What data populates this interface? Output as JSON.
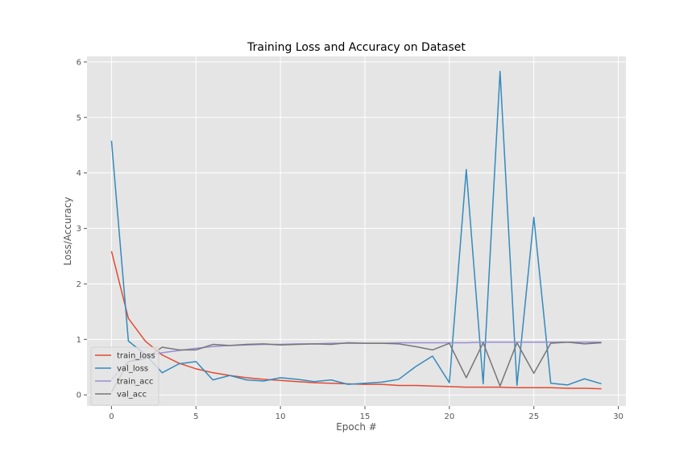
{
  "chart_data": {
    "type": "line",
    "title": "Training Loss and Accuracy on Dataset",
    "xlabel": "Epoch #",
    "ylabel": "Loss/Accuracy",
    "xlim": [
      -1.45,
      30.45
    ],
    "ylim": [
      -0.2,
      6.1
    ],
    "xticks": [
      0,
      5,
      10,
      15,
      20,
      25,
      30
    ],
    "yticks": [
      0,
      1,
      2,
      3,
      4,
      5,
      6
    ],
    "grid": true,
    "legend_position": "lower-left",
    "x": [
      0,
      1,
      2,
      3,
      4,
      5,
      6,
      7,
      8,
      9,
      10,
      11,
      12,
      13,
      14,
      15,
      16,
      17,
      18,
      19,
      20,
      21,
      22,
      23,
      24,
      25,
      26,
      27,
      28,
      29
    ],
    "series": [
      {
        "name": "train_loss",
        "color": "#E24A33",
        "values": [
          2.59,
          1.38,
          0.97,
          0.72,
          0.57,
          0.47,
          0.4,
          0.35,
          0.31,
          0.28,
          0.26,
          0.24,
          0.22,
          0.21,
          0.2,
          0.19,
          0.19,
          0.17,
          0.17,
          0.16,
          0.15,
          0.14,
          0.14,
          0.14,
          0.13,
          0.13,
          0.13,
          0.12,
          0.12,
          0.11
        ]
      },
      {
        "name": "val_loss",
        "color": "#348ABD",
        "values": [
          4.58,
          0.97,
          0.73,
          0.4,
          0.56,
          0.6,
          0.27,
          0.35,
          0.27,
          0.25,
          0.31,
          0.28,
          0.24,
          0.27,
          0.19,
          0.21,
          0.23,
          0.28,
          0.51,
          0.7,
          0.22,
          4.06,
          0.2,
          5.83,
          0.17,
          3.2,
          0.21,
          0.18,
          0.29,
          0.2
        ]
      },
      {
        "name": "train_acc",
        "color": "#988ED5",
        "values": [
          0.28,
          0.6,
          0.7,
          0.76,
          0.8,
          0.84,
          0.87,
          0.89,
          0.9,
          0.91,
          0.91,
          0.92,
          0.92,
          0.93,
          0.93,
          0.93,
          0.93,
          0.94,
          0.94,
          0.94,
          0.94,
          0.94,
          0.95,
          0.95,
          0.95,
          0.95,
          0.95,
          0.95,
          0.95,
          0.95
        ]
      },
      {
        "name": "val_acc",
        "color": "#777777",
        "values": [
          0.05,
          0.6,
          0.65,
          0.86,
          0.81,
          0.81,
          0.91,
          0.89,
          0.91,
          0.92,
          0.9,
          0.91,
          0.92,
          0.91,
          0.94,
          0.93,
          0.93,
          0.92,
          0.87,
          0.81,
          0.93,
          0.31,
          0.94,
          0.16,
          0.94,
          0.39,
          0.93,
          0.95,
          0.92,
          0.94
        ]
      }
    ]
  }
}
